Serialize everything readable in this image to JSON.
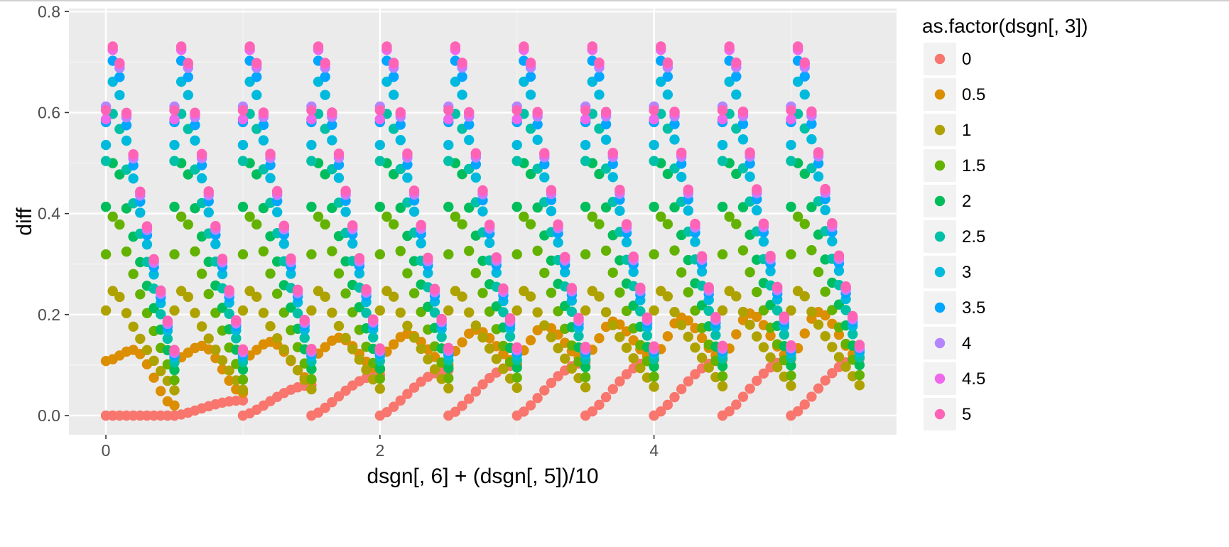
{
  "chart_data": {
    "type": "scatter",
    "xlabel": "dsgn[, 6] + (dsgn[, 5])/10",
    "ylabel": "diff",
    "xlim": [
      -0.27,
      5.77
    ],
    "ylim": [
      -0.038,
      0.806
    ],
    "x_ticks": [
      0,
      2,
      4
    ],
    "x_tick_labels": [
      "0",
      "2",
      "4"
    ],
    "y_ticks": [
      0.0,
      0.2,
      0.4,
      0.6,
      0.8
    ],
    "y_tick_labels": [
      "0.0",
      "0.2",
      "0.4",
      "0.6",
      "0.8"
    ],
    "grid": true,
    "legend": {
      "title": "as.factor(dsgn[, 3])",
      "position": "right",
      "entries": [
        "0",
        "0.5",
        "1",
        "1.5",
        "2",
        "2.5",
        "3",
        "3.5",
        "4",
        "4.5",
        "5"
      ],
      "colors": [
        "#F8766D",
        "#DB8E00",
        "#AEA200",
        "#64B200",
        "#00BD5C",
        "#00C1A7",
        "#00BADE",
        "#00A6FF",
        "#B385FF",
        "#EF67EB",
        "#FF63B6"
      ]
    },
    "groups": [
      0,
      0.5,
      1,
      1.5,
      2,
      2.5,
      3,
      3.5,
      4,
      4.5,
      5
    ],
    "blocks": [
      0,
      0.5,
      1,
      1.5,
      2,
      2.5,
      3,
      3.5,
      4,
      4.5,
      5
    ],
    "points_per_block": 11,
    "point_step": 0.05,
    "series_params": [
      {
        "name": "0",
        "start": [
          0,
          0,
          0,
          0,
          0,
          0,
          0,
          0,
          0,
          0,
          0
        ],
        "end": [
          0,
          0.03,
          0.06,
          0.08,
          0.09,
          0.1,
          0.105,
          0.11,
          0.11,
          0.112,
          0.113
        ]
      },
      {
        "name": "0.5",
        "peak_base": 0.13,
        "peak_growth": 0.08,
        "end": [
          0.02,
          0.045,
          0.07,
          0.09,
          0.1,
          0.105,
          0.11,
          0.112,
          0.113,
          0.114,
          0.115
        ]
      },
      {
        "name": "1",
        "peak": 0.26,
        "end": 0.05
      },
      {
        "name": "1.5",
        "peak": 0.42,
        "end": 0.07
      },
      {
        "name": "2",
        "peak": 0.53,
        "end": 0.09
      },
      {
        "name": "2.5",
        "peak": 0.63,
        "end": 0.105
      },
      {
        "name": "3",
        "peak": 0.705,
        "end": 0.115
      },
      {
        "name": "3.5",
        "peak": 0.745,
        "end": 0.12
      },
      {
        "name": "4",
        "peak": 0.765,
        "end": 0.124
      },
      {
        "name": "4.5",
        "peak": 0.772,
        "end": 0.127
      },
      {
        "name": "5",
        "peak": 0.775,
        "end": 0.13
      }
    ]
  }
}
